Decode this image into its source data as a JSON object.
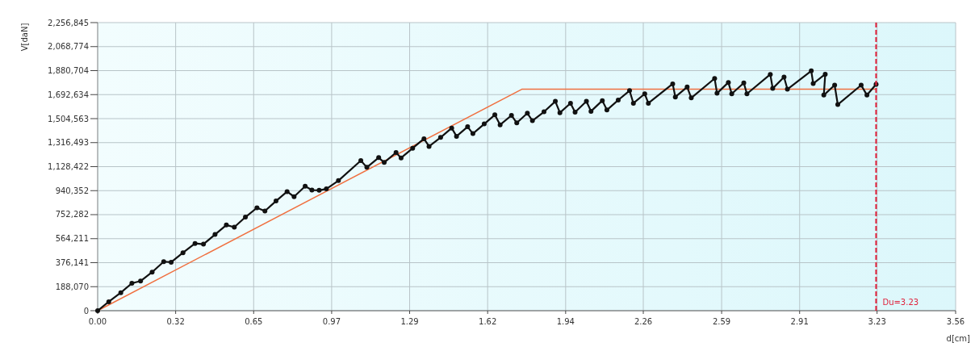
{
  "chart_data": {
    "type": "line",
    "xlabel": "d[cm]",
    "ylabel": "V[daN]",
    "xlim": [
      0,
      3.56
    ],
    "xticks": [
      {
        "value": 0,
        "label": "0.00"
      },
      {
        "value": 0.3236,
        "label": "0.32"
      },
      {
        "value": 0.6473,
        "label": "0.65"
      },
      {
        "value": 0.9709,
        "label": "0.97"
      },
      {
        "value": 1.2945,
        "label": "1.29"
      },
      {
        "value": 1.6182,
        "label": "1.62"
      },
      {
        "value": 1.9418,
        "label": "1.94"
      },
      {
        "value": 2.264,
        "label": "2.26"
      },
      {
        "value": 2.5891,
        "label": "2.59"
      },
      {
        "value": 2.9127,
        "label": "2.91"
      },
      {
        "value": 3.234,
        "label": "3.23"
      },
      {
        "value": 3.56,
        "label": "3.56"
      }
    ],
    "ylim": [
      0,
      2256845
    ],
    "yticks": [
      {
        "value": 0,
        "label": "0"
      },
      {
        "value": 188070,
        "label": "188,070"
      },
      {
        "value": 376141,
        "label": "376,141"
      },
      {
        "value": 564211,
        "label": "564,211"
      },
      {
        "value": 752282,
        "label": "752,282"
      },
      {
        "value": 940352,
        "label": "940,352"
      },
      {
        "value": 1128422,
        "label": "1,128,422"
      },
      {
        "value": 1316493,
        "label": "1,316,493"
      },
      {
        "value": 1504563,
        "label": "1,504,563"
      },
      {
        "value": 1692634,
        "label": "1,692,634"
      },
      {
        "value": 1880704,
        "label": "1,880,704"
      },
      {
        "value": 2068774,
        "label": "2,068,774"
      },
      {
        "value": 2256845,
        "label": "2,256,845"
      }
    ],
    "grid": true,
    "series": [
      {
        "color": "#f07040",
        "marker": "none",
        "x": [
          0,
          1.76,
          3.23
        ],
        "values": [
          0,
          1735000,
          1735000
        ]
      },
      {
        "color": "#111111",
        "marker": "circle",
        "x": [
          0,
          0.046,
          0.096,
          0.142,
          0.178,
          0.226,
          0.274,
          0.305,
          0.354,
          0.404,
          0.439,
          0.487,
          0.534,
          0.567,
          0.613,
          0.661,
          0.694,
          0.74,
          0.786,
          0.815,
          0.861,
          0.889,
          0.919,
          0.949,
          0.999,
          1.092,
          1.117,
          1.166,
          1.189,
          1.238,
          1.259,
          1.307,
          1.354,
          1.375,
          1.423,
          1.469,
          1.489,
          1.535,
          1.557,
          1.604,
          1.648,
          1.67,
          1.717,
          1.739,
          1.783,
          1.804,
          1.852,
          1.899,
          1.918,
          1.962,
          1.981,
          2.028,
          2.047,
          2.094,
          2.113,
          2.16,
          2.207,
          2.223,
          2.27,
          2.285,
          2.386,
          2.397,
          2.446,
          2.463,
          2.56,
          2.57,
          2.617,
          2.631,
          2.681,
          2.694,
          2.791,
          2.801,
          2.848,
          2.862,
          2.961,
          2.969,
          3.019,
          3.013,
          3.058,
          3.071,
          3.168,
          3.192,
          3.23
        ],
        "values": [
          0,
          70000,
          141000,
          215000,
          232000,
          302000,
          384000,
          380000,
          454000,
          527000,
          521000,
          597000,
          671000,
          654000,
          733000,
          806000,
          781000,
          859000,
          933000,
          893000,
          975000,
          945000,
          943000,
          954000,
          1019000,
          1176000,
          1123000,
          1199000,
          1161000,
          1239000,
          1197000,
          1273000,
          1347000,
          1287000,
          1357000,
          1431000,
          1366000,
          1441000,
          1387000,
          1463000,
          1534000,
          1456000,
          1530000,
          1471000,
          1547000,
          1488000,
          1558000,
          1640000,
          1551000,
          1625000,
          1555000,
          1640000,
          1562000,
          1646000,
          1572000,
          1650000,
          1724000,
          1625000,
          1699000,
          1625000,
          1777000,
          1674000,
          1752000,
          1667000,
          1819000,
          1703000,
          1788000,
          1699000,
          1784000,
          1699000,
          1851000,
          1741000,
          1830000,
          1735000,
          1879000,
          1779000,
          1853000,
          1689000,
          1767000,
          1615000,
          1767000,
          1689000,
          1773000
        ]
      }
    ],
    "ref_lines": [
      {
        "axis": "x",
        "value": 3.23,
        "label": "Du=3.23",
        "color": "#e0203a",
        "line_style": "dashed"
      }
    ]
  }
}
